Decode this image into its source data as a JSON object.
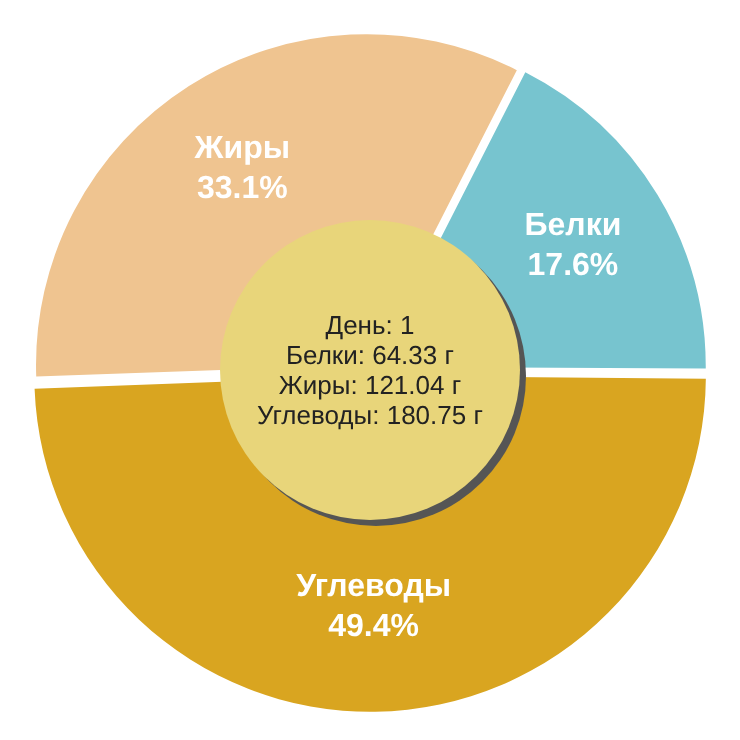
{
  "chart_data": {
    "type": "pie",
    "categories": [
      "Белки",
      "Углеводы",
      "Жиры"
    ],
    "values": [
      17.6,
      49.4,
      33.1
    ],
    "colors": [
      "#77c4cf",
      "#d9a520",
      "#efc490"
    ],
    "value_labels": [
      "17.6%",
      "49.4%",
      "33.1%"
    ],
    "annotations": [
      "День: 1",
      "Белки: 64.33 г",
      "Жиры: 121.04 г",
      "Углеводы: 180.75 г"
    ],
    "legend": false
  }
}
